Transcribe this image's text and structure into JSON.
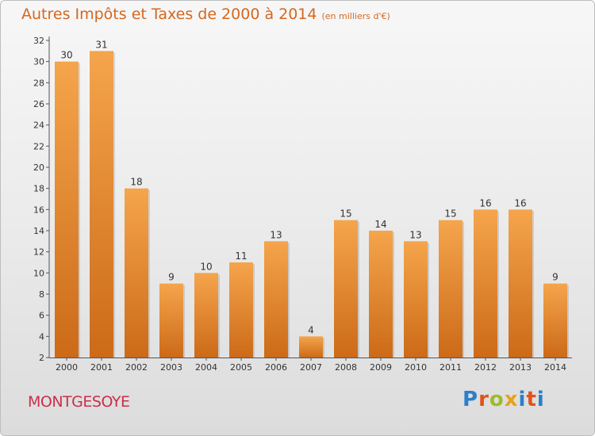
{
  "title": "Autres Impôts et Taxes de 2000 à 2014",
  "subtitle": "(en milliers d'€)",
  "commune": "MONTGESOYE",
  "logo_text": "Proxiti",
  "colors": {
    "title": "#d5671e",
    "commune": "#c8304a",
    "bar_light": "#f5a54c",
    "bar_dark": "#cc6a18"
  },
  "chart_data": {
    "type": "bar",
    "categories": [
      "2000",
      "2001",
      "2002",
      "2003",
      "2004",
      "2005",
      "2006",
      "2007",
      "2008",
      "2009",
      "2010",
      "2011",
      "2012",
      "2013",
      "2014"
    ],
    "values": [
      30,
      31,
      18,
      9,
      10,
      11,
      13,
      4,
      15,
      14,
      13,
      15,
      16,
      16,
      9
    ],
    "ylim": [
      2,
      32
    ],
    "yticks": [
      2,
      4,
      6,
      8,
      10,
      12,
      14,
      16,
      18,
      20,
      22,
      24,
      26,
      28,
      30,
      32
    ],
    "grid": false,
    "legend": "none"
  }
}
